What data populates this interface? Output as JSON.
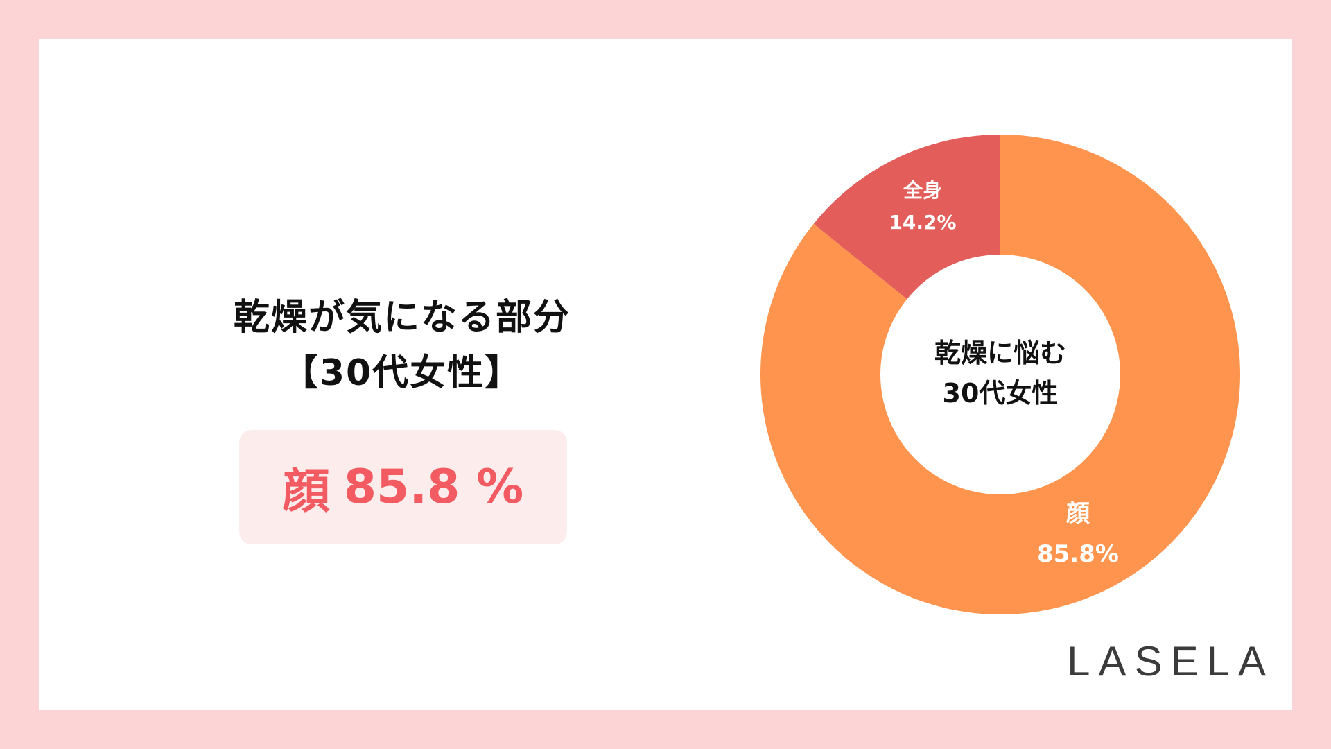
{
  "heading": {
    "line1": "乾燥が気になる部分",
    "line2": "【30代女性】"
  },
  "highlight": {
    "label": "顔",
    "value": "85.8 %"
  },
  "brand": "LASELA",
  "colors": {
    "background": "#fdd4d6",
    "face": "#fe944d",
    "body": "#e35e5b",
    "highlight_text": "#f15b61"
  },
  "chart_data": {
    "type": "pie",
    "center_label": [
      "乾燥に悩む",
      "30代女性"
    ],
    "slices": [
      {
        "label": "全身",
        "value": 14.2,
        "value_label": "14.2%",
        "color": "#e35e5b"
      },
      {
        "label": "顔",
        "value": 85.8,
        "value_label": "85.8%",
        "color": "#fe944d"
      }
    ]
  }
}
